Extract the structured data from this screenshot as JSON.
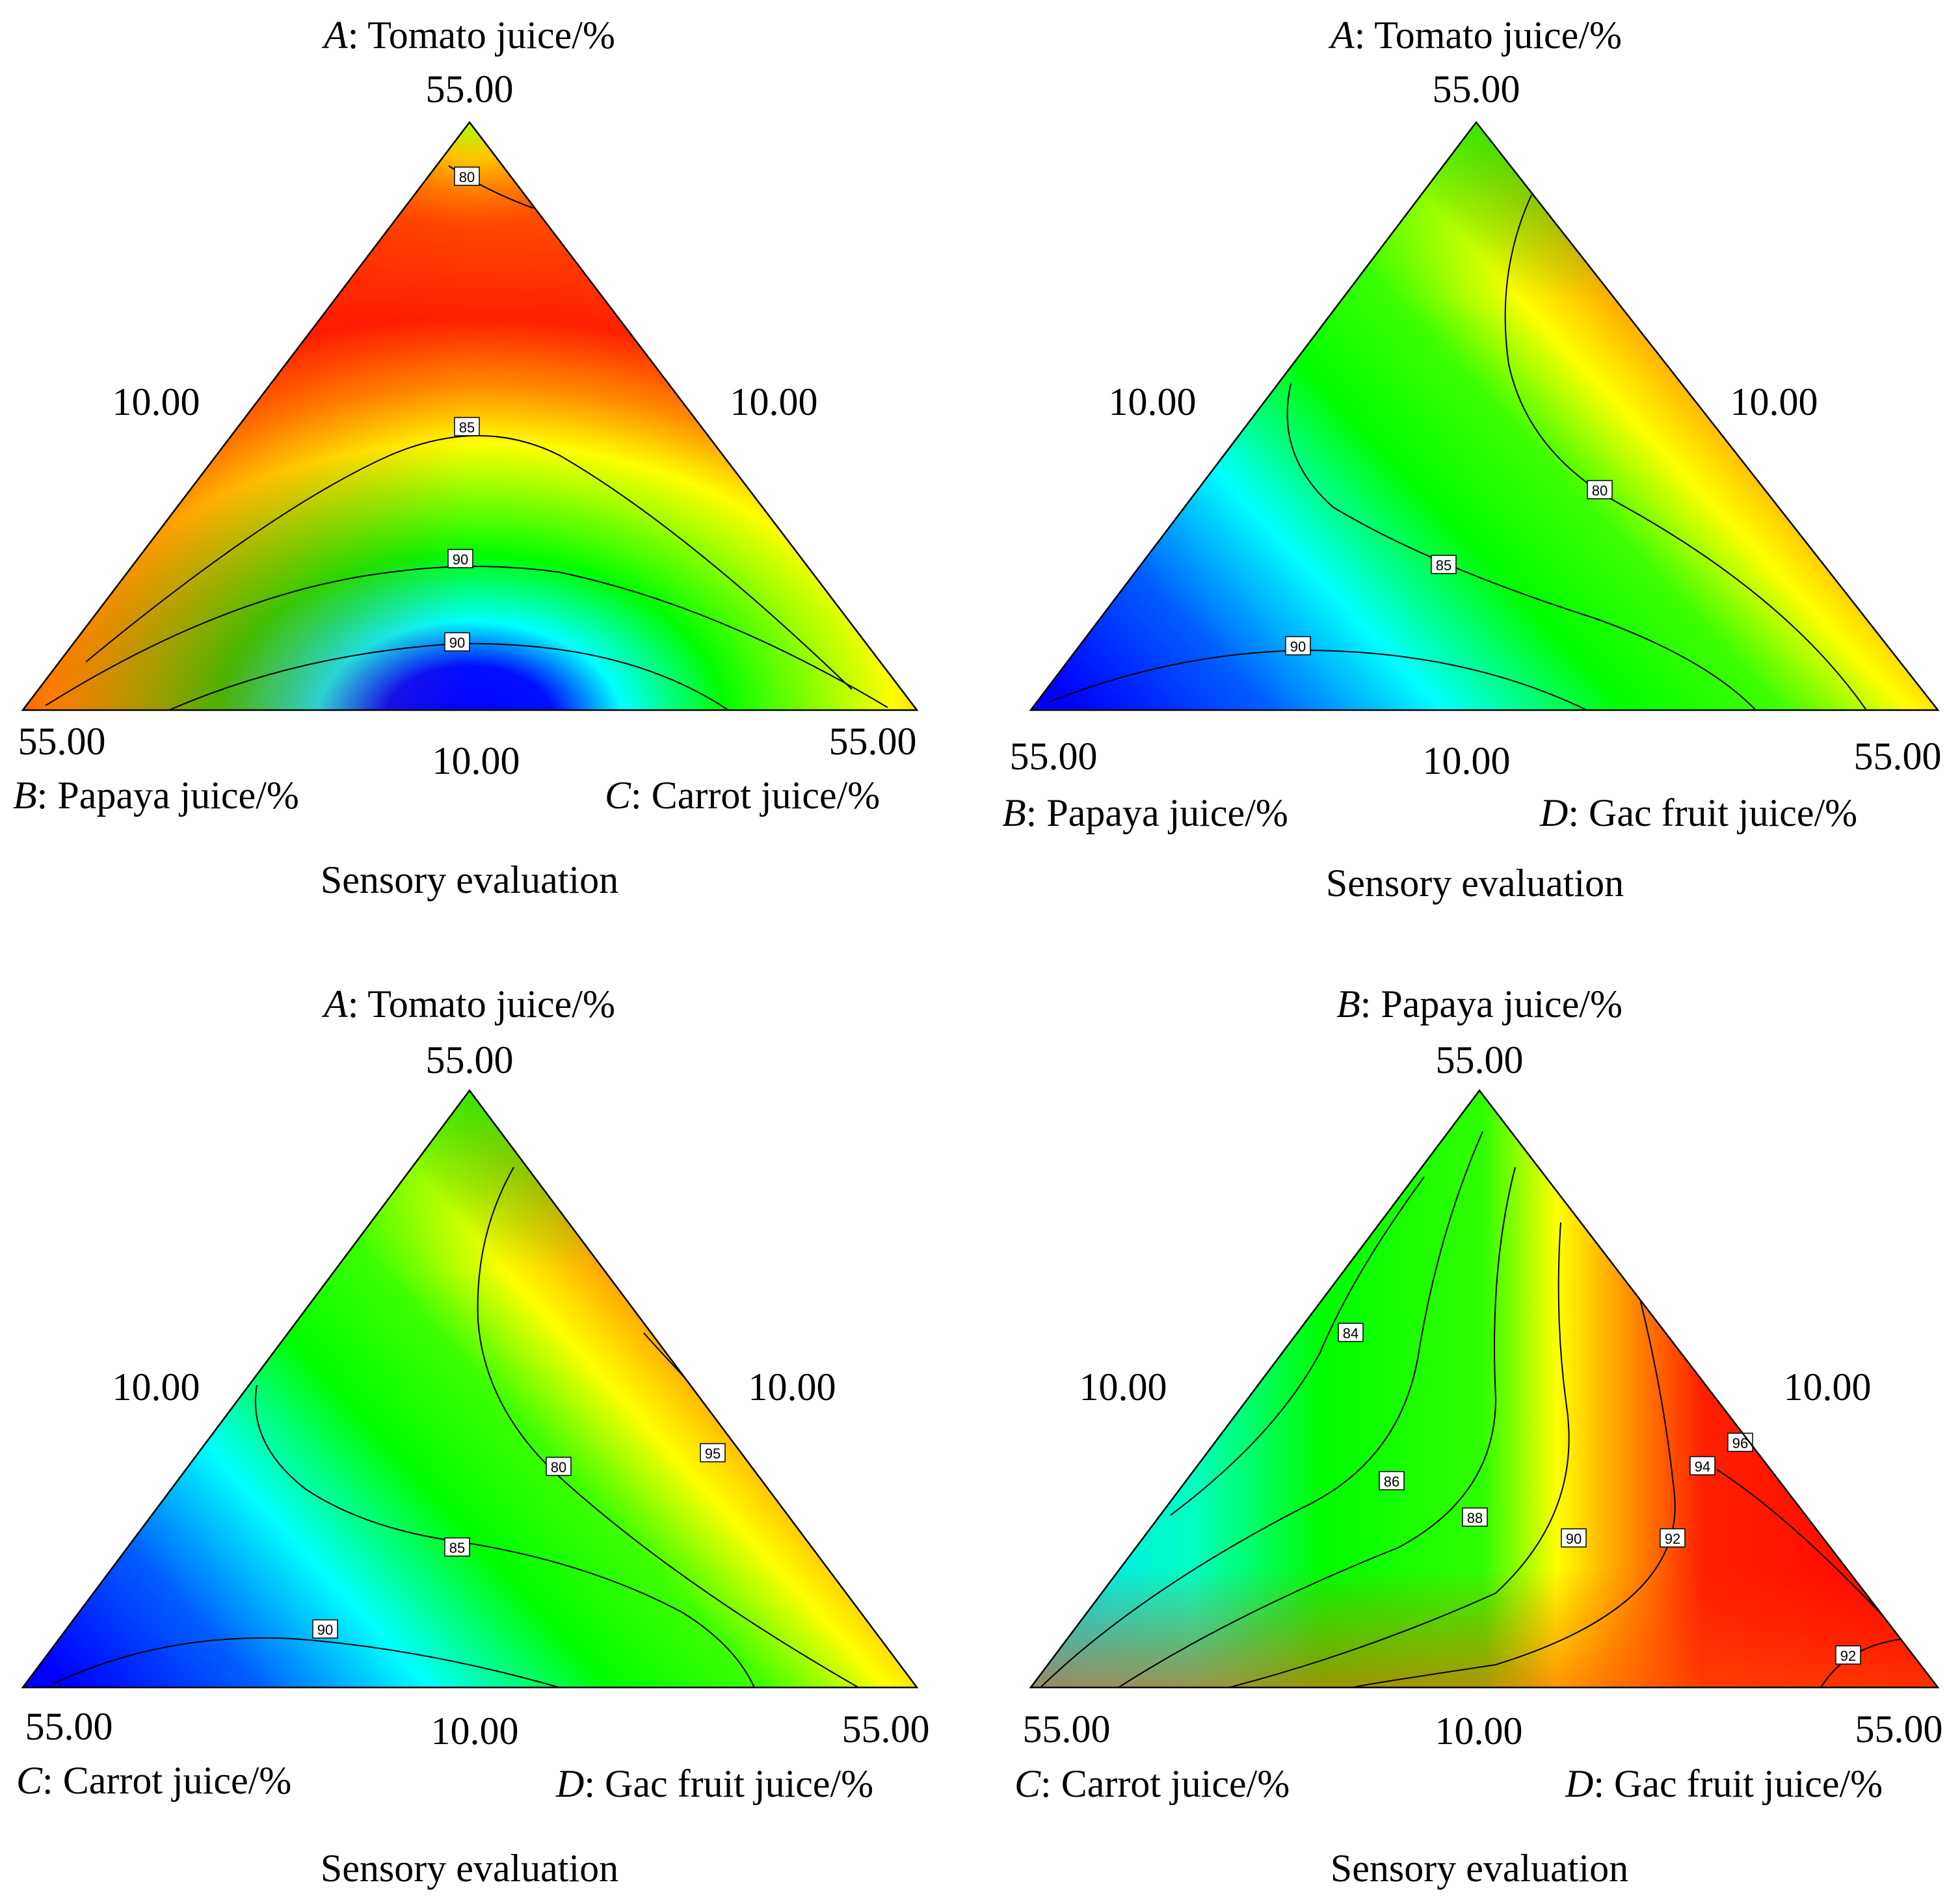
{
  "figure": {
    "panels": [
      {
        "id": "panel-1",
        "caption": "Sensory evaluation",
        "top": {
          "var": "A",
          "name": ": Tomato juice/%",
          "max": "55.00"
        },
        "left": {
          "var": "B",
          "name": ": Papaya juice/%",
          "max": "55.00"
        },
        "right": {
          "var": "C",
          "name": ": Carrot juice/%",
          "max": "55.00"
        },
        "min_left": "10.00",
        "min_right": "10.00",
        "min_bottom": "10.00"
      },
      {
        "id": "panel-2",
        "caption": "Sensory evaluation",
        "top": {
          "var": "A",
          "name": ": Tomato juice/%",
          "max": "55.00"
        },
        "left": {
          "var": "B",
          "name": ": Papaya juice/%",
          "max": "55.00"
        },
        "right": {
          "var": "D",
          "name": ": Gac fruit juice/%",
          "max": "55.00"
        },
        "min_left": "10.00",
        "min_right": "10.00",
        "min_bottom": "10.00"
      },
      {
        "id": "panel-3",
        "caption": "Sensory evaluation",
        "top": {
          "var": "A",
          "name": ": Tomato juice/%",
          "max": "55.00"
        },
        "left": {
          "var": "C",
          "name": ": Carrot juice/%",
          "max": "55.00"
        },
        "right": {
          "var": "D",
          "name": ": Gac fruit juice/%",
          "max": "55.00"
        },
        "min_left": "10.00",
        "min_right": "10.00",
        "min_bottom": "10.00"
      },
      {
        "id": "panel-4",
        "caption": "Sensory evaluation",
        "top": {
          "var": "B",
          "name": ": Papaya juice/%",
          "max": "55.00"
        },
        "left": {
          "var": "C",
          "name": ": Carrot juice/%",
          "max": "55.00"
        },
        "right": {
          "var": "D",
          "name": ": Gac fruit juice/%",
          "max": "55.00"
        },
        "min_left": "10.00",
        "min_right": "10.00",
        "min_bottom": "10.00"
      }
    ]
  },
  "chart_data": [
    {
      "type": "heatmap",
      "subtype": "ternary-contour",
      "title": "Sensory evaluation",
      "axes": {
        "top": "A: Tomato juice/%",
        "bottom-left": "B: Papaya juice/%",
        "bottom-right": "C: Carrot juice/%"
      },
      "range": [
        10,
        55
      ],
      "color_scale": [
        "#0000ff",
        "#00ffff",
        "#00ff00",
        "#ffff00",
        "#ff0000"
      ],
      "contour_levels": [
        {
          "level": 80,
          "color_region": "blue"
        },
        {
          "level": 85,
          "color_region": "green"
        },
        {
          "level": 90,
          "color_region": "yellow"
        },
        {
          "level": 90,
          "color_region": "yellow",
          "location": "top corner"
        }
      ],
      "description_values": {
        "max_region": "upper-left (high A, high B)",
        "min_region": "bottom center (low A)"
      }
    },
    {
      "type": "heatmap",
      "subtype": "ternary-contour",
      "title": "Sensory evaluation",
      "axes": {
        "top": "A: Tomato juice/%",
        "bottom-left": "B: Papaya juice/%",
        "bottom-right": "D: Gac fruit juice/%"
      },
      "range": [
        10,
        55
      ],
      "color_scale": [
        "#0000ff",
        "#00ffff",
        "#00ff00",
        "#ffff00",
        "#ff0000"
      ],
      "contour_levels": [
        {
          "level": 80,
          "color_region": "blue"
        },
        {
          "level": 85,
          "color_region": "green"
        },
        {
          "level": 90,
          "color_region": "yellow"
        }
      ],
      "description_values": {
        "max_region": "right edge (high D)",
        "min_region": "bottom-left (high B)"
      }
    },
    {
      "type": "heatmap",
      "subtype": "ternary-contour",
      "title": "Sensory evaluation",
      "axes": {
        "top": "A: Tomato juice/%",
        "bottom-left": "C: Carrot juice/%",
        "bottom-right": "D: Gac fruit juice/%"
      },
      "range": [
        10,
        55
      ],
      "color_scale": [
        "#0000ff",
        "#00ffff",
        "#00ff00",
        "#ffff00",
        "#ff0000"
      ],
      "contour_levels": [
        {
          "level": 80,
          "color_region": "blue"
        },
        {
          "level": 85,
          "color_region": "green"
        },
        {
          "level": 90,
          "color_region": "yellow"
        },
        {
          "level": 95,
          "color_region": "red"
        }
      ],
      "description_values": {
        "max_region": "right edge (high D)",
        "min_region": "bottom-left (high C)"
      }
    },
    {
      "type": "heatmap",
      "subtype": "ternary-contour",
      "title": "Sensory evaluation",
      "axes": {
        "top": "B: Papaya juice/%",
        "bottom-left": "C: Carrot juice/%",
        "bottom-right": "D: Gac fruit juice/%"
      },
      "range": [
        10,
        55
      ],
      "color_scale": [
        "#0000ff",
        "#00ffff",
        "#00ff00",
        "#ffff00",
        "#ff0000"
      ],
      "contour_levels": [
        {
          "level": 84
        },
        {
          "level": 86
        },
        {
          "level": 88
        },
        {
          "level": 90
        },
        {
          "level": 92
        },
        {
          "level": 94
        },
        {
          "level": 96
        },
        {
          "level": 92,
          "location": "bottom-right corner"
        }
      ],
      "description_values": {
        "max_region": "right edge (high D)",
        "min_region": "left edge (high C)"
      }
    }
  ]
}
